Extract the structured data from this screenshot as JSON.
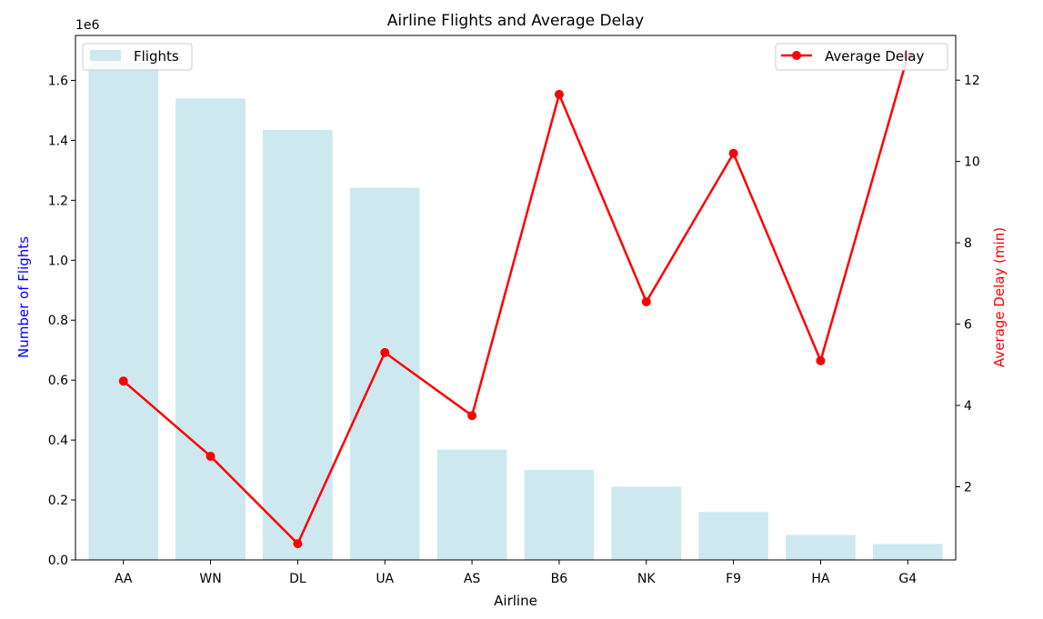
{
  "chart_data": {
    "type": "bar",
    "title": "Airline Flights and Average Delay",
    "xlabel": "Airline",
    "ylabel": "Number of Flights",
    "y2label": "Average Delay (min)",
    "y_offset_text": "1e6",
    "categories": [
      "AA",
      "WN",
      "DL",
      "UA",
      "AS",
      "B6",
      "NK",
      "F9",
      "HA",
      "G4"
    ],
    "series": [
      {
        "name": "Flights",
        "type": "bar",
        "axis": "left",
        "color": "#add8e6",
        "values": [
          1660000,
          1540000,
          1435000,
          1242000,
          368000,
          300000,
          244000,
          160000,
          83000,
          53000
        ]
      },
      {
        "name": "Average Delay",
        "type": "line",
        "axis": "right",
        "color": "#ff0000",
        "values": [
          4.6,
          2.75,
          0.6,
          5.3,
          3.75,
          11.65,
          6.55,
          10.2,
          5.1,
          12.6
        ]
      }
    ],
    "ylim": [
      0,
      1750000
    ],
    "yticks": [
      0.0,
      0.2,
      0.4,
      0.6,
      0.8,
      1.0,
      1.2,
      1.4,
      1.6
    ],
    "y2lim": [
      0.2,
      13.1
    ],
    "y2ticks": [
      2,
      4,
      6,
      8,
      10,
      12
    ],
    "legend_left": "top-left",
    "legend_right": "top-right",
    "grid": false,
    "colors": {
      "left_axis_label": "#0000ff",
      "right_axis_label": "#ff0000"
    }
  }
}
